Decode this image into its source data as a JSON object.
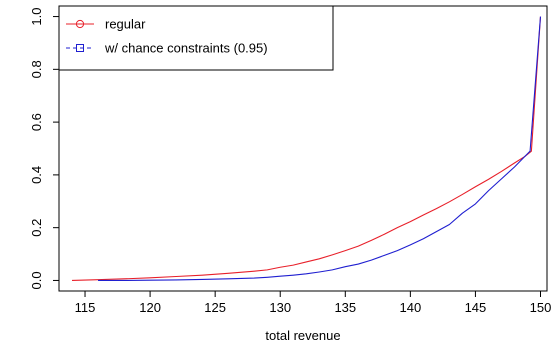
{
  "chart_data": {
    "type": "line",
    "xlabel": "total revenue",
    "ylabel": "",
    "xlim": [
      113,
      150.5
    ],
    "ylim": [
      -0.04,
      1.04
    ],
    "xticks": [
      115,
      120,
      125,
      130,
      135,
      140,
      145,
      150
    ],
    "yticks": [
      0.0,
      0.2,
      0.4,
      0.6,
      0.8,
      1.0
    ],
    "xtick_labels": [
      "115",
      "120",
      "125",
      "130",
      "135",
      "140",
      "145",
      "150"
    ],
    "ytick_labels": [
      "0.0",
      "0.2",
      "0.4",
      "0.6",
      "0.8",
      "1.0"
    ],
    "legend": {
      "placement": "top-left",
      "entries": [
        "regular",
        "w/ chance constraints (0.95)"
      ]
    },
    "series": [
      {
        "name": "regular",
        "color": "#e8202a",
        "line_style": "solid",
        "marker": "circle",
        "x": [
          114,
          116,
          118,
          120,
          122,
          124,
          126,
          128,
          129,
          130,
          131,
          132,
          133,
          134,
          135,
          136,
          137,
          138,
          139,
          140,
          141,
          142,
          143,
          144,
          145,
          146,
          147,
          148,
          148.8,
          149.3,
          150
        ],
        "y": [
          0.0,
          0.003,
          0.006,
          0.01,
          0.015,
          0.02,
          0.027,
          0.035,
          0.04,
          0.05,
          0.058,
          0.07,
          0.082,
          0.097,
          0.113,
          0.13,
          0.152,
          0.175,
          0.2,
          0.223,
          0.248,
          0.272,
          0.298,
          0.326,
          0.355,
          0.383,
          0.413,
          0.445,
          0.47,
          0.49,
          1.0
        ]
      },
      {
        "name": "w/ chance constraints (0.95)",
        "color": "#1f1fd0",
        "line_style": "dashed",
        "marker": "square",
        "x": [
          116,
          118,
          120,
          122,
          124,
          126,
          128,
          129,
          130,
          131,
          132,
          133,
          134,
          135,
          136,
          137,
          138,
          139,
          140,
          141,
          142,
          143,
          144,
          145,
          146,
          147,
          148,
          148.8,
          149.2,
          150
        ],
        "y": [
          0.0,
          0.0,
          0.001,
          0.002,
          0.004,
          0.006,
          0.009,
          0.012,
          0.016,
          0.02,
          0.025,
          0.032,
          0.04,
          0.052,
          0.062,
          0.077,
          0.095,
          0.113,
          0.135,
          0.158,
          0.185,
          0.212,
          0.255,
          0.29,
          0.34,
          0.385,
          0.43,
          0.47,
          0.49,
          1.0
        ]
      }
    ]
  }
}
